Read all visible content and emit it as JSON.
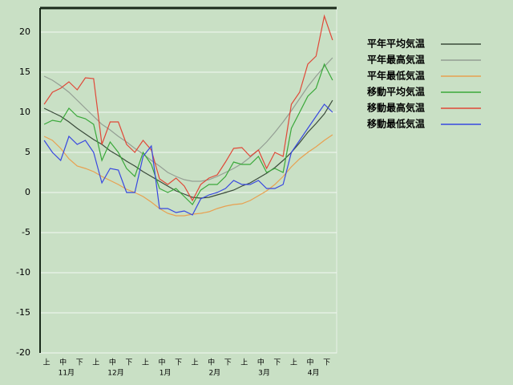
{
  "chart_data": {
    "type": "line",
    "categories": [
      "上",
      null,
      "中",
      null,
      "下",
      null,
      "上",
      null,
      "中",
      null,
      "下",
      null,
      "上",
      null,
      "中",
      null,
      "下",
      null,
      "上",
      null,
      "中",
      null,
      "下",
      null,
      "上",
      null,
      "中",
      null,
      "下",
      null,
      "上",
      null,
      "中",
      null,
      "下",
      null
    ],
    "months": [
      "11月",
      "12月",
      "1月",
      "2月",
      "3月",
      "4月"
    ],
    "ylim": [
      -20,
      23
    ],
    "yticks": [
      -20,
      -15,
      -10,
      -5,
      0,
      5,
      10,
      15,
      20
    ],
    "grid": true,
    "series": [
      {
        "name": "平年平均気温",
        "color": "#3a4a3a",
        "values": [
          10.5,
          10,
          9.5,
          8.8,
          8,
          7.3,
          6.6,
          6,
          5.2,
          4.6,
          3.9,
          3.3,
          2.6,
          2,
          1.4,
          0.8,
          0.2,
          -0.2,
          -0.6,
          -0.7,
          -0.6,
          -0.3,
          0,
          0.3,
          0.8,
          1.2,
          1.8,
          2.4,
          3.1,
          4,
          5,
          6.2,
          7.5,
          8.6,
          9.8,
          11.5
        ]
      },
      {
        "name": "平年最高気温",
        "color": "#949e94",
        "values": [
          14.5,
          14,
          13.3,
          12.5,
          11.5,
          10.5,
          9.5,
          8.5,
          7.8,
          7,
          6.3,
          5.5,
          4.8,
          4,
          3.3,
          2.5,
          2,
          1.6,
          1.4,
          1.4,
          1.6,
          2,
          2.5,
          3,
          3.6,
          4.4,
          5.3,
          6.3,
          7.5,
          8.8,
          10.2,
          11.7,
          13.2,
          14.5,
          15.7,
          16.8
        ]
      },
      {
        "name": "平年最低気温",
        "color": "#e8a050",
        "values": [
          7,
          6.5,
          5.5,
          4.2,
          3.3,
          3,
          2.6,
          2,
          1.5,
          1,
          0.4,
          0,
          -0.5,
          -1.2,
          -2,
          -2.6,
          -2.9,
          -2.9,
          -2.7,
          -2.6,
          -2.4,
          -2,
          -1.7,
          -1.5,
          -1.4,
          -1,
          -0.4,
          0.2,
          1,
          2,
          3.2,
          4.2,
          5,
          5.7,
          6.5,
          7.2
        ]
      },
      {
        "name": "移動平均気温",
        "color": "#3aa83a",
        "values": [
          8.5,
          9,
          8.8,
          10.5,
          9.5,
          9.2,
          8.5,
          4,
          6.3,
          5,
          3,
          2,
          5,
          3.5,
          0.5,
          0,
          0.5,
          -0.5,
          -1.5,
          0.3,
          1,
          1,
          2,
          3.8,
          3.5,
          3.5,
          4.5,
          2.5,
          3,
          2.5,
          8,
          10,
          12,
          13,
          16,
          14
        ]
      },
      {
        "name": "移動最高気温",
        "color": "#e04838",
        "values": [
          11,
          12.5,
          13,
          13.8,
          12.8,
          14.3,
          14.2,
          6,
          8.8,
          8.8,
          6,
          5,
          6.5,
          5.3,
          1.7,
          1,
          1.8,
          0.8,
          -1,
          1,
          1.8,
          2.2,
          3.8,
          5.5,
          5.6,
          4.5,
          5.3,
          3,
          5,
          4.5,
          11,
          12.5,
          16,
          17,
          22,
          19
        ]
      },
      {
        "name": "移動最低気温",
        "color": "#3848e0",
        "values": [
          6.5,
          5,
          4,
          7,
          6,
          6.5,
          5,
          1.2,
          3,
          2.8,
          0,
          0,
          4.5,
          5.8,
          -2,
          -2,
          -2.5,
          -2.3,
          -2.8,
          -0.8,
          -0.3,
          0,
          0.5,
          1.5,
          1,
          1,
          1.5,
          0.5,
          0.5,
          1,
          5,
          6.5,
          8,
          9.5,
          11,
          10
        ]
      }
    ]
  }
}
